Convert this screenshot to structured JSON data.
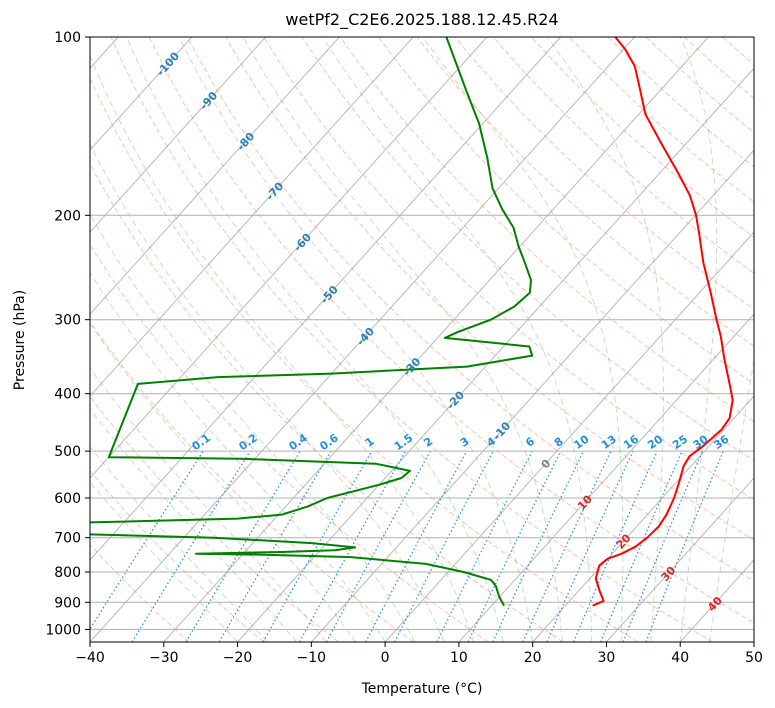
{
  "chart_data": {
    "type": "line",
    "subtype": "skew-t log-p",
    "title": "wetPf2_C2E6.2025.188.12.45.R24",
    "xlabel": "Temperature (°C)",
    "ylabel": "Pressure (hPa)",
    "xlim": [
      -40,
      50
    ],
    "ylim": [
      1050,
      100
    ],
    "y_scale": "log",
    "grid": true,
    "x_ticks": [
      -40,
      -30,
      -20,
      -10,
      0,
      10,
      20,
      30,
      40,
      50
    ],
    "y_ticks": [
      100,
      200,
      300,
      400,
      500,
      600,
      700,
      800,
      900,
      1000
    ],
    "series": [
      {
        "color": "#ff0000",
        "role": "temperature",
        "points": [
          {
            "p": 912,
            "t": 23.7
          },
          {
            "p": 895,
            "t": 24.6
          },
          {
            "p": 860,
            "t": 22.8
          },
          {
            "p": 820,
            "t": 20.8
          },
          {
            "p": 780,
            "t": 19.7
          },
          {
            "p": 760,
            "t": 20.0
          },
          {
            "p": 745,
            "t": 21.3
          },
          {
            "p": 725,
            "t": 22.3
          },
          {
            "p": 700,
            "t": 22.8
          },
          {
            "p": 670,
            "t": 23.0
          },
          {
            "p": 640,
            "t": 22.6
          },
          {
            "p": 600,
            "t": 21.6
          },
          {
            "p": 560,
            "t": 20.2
          },
          {
            "p": 530,
            "t": 19.0
          },
          {
            "p": 510,
            "t": 18.6
          },
          {
            "p": 490,
            "t": 19.2
          },
          {
            "p": 460,
            "t": 19.7
          },
          {
            "p": 440,
            "t": 19.4
          },
          {
            "p": 410,
            "t": 17.6
          },
          {
            "p": 380,
            "t": 14.7
          },
          {
            "p": 350,
            "t": 11.5
          },
          {
            "p": 320,
            "t": 8.2
          },
          {
            "p": 300,
            "t": 5.6
          },
          {
            "p": 270,
            "t": 1.5
          },
          {
            "p": 240,
            "t": -3.2
          },
          {
            "p": 215,
            "t": -7.2
          },
          {
            "p": 200,
            "t": -9.9
          },
          {
            "p": 185,
            "t": -13.2
          },
          {
            "p": 170,
            "t": -17.4
          },
          {
            "p": 150,
            "t": -23.8
          },
          {
            "p": 135,
            "t": -29.1
          },
          {
            "p": 120,
            "t": -33.7
          },
          {
            "p": 112,
            "t": -36.4
          },
          {
            "p": 105,
            "t": -39.7
          },
          {
            "p": 100,
            "t": -42.6
          }
        ]
      },
      {
        "color": "#008000",
        "role": "dewpoint",
        "points": [
          {
            "p": 912,
            "t": 11.7
          },
          {
            "p": 880,
            "t": 9.9
          },
          {
            "p": 845,
            "t": 8.2
          },
          {
            "p": 825,
            "t": 6.8
          },
          {
            "p": 800,
            "t": 2.1
          },
          {
            "p": 775,
            "t": -4.0
          },
          {
            "p": 755,
            "t": -15.0
          },
          {
            "p": 748,
            "t": -27.0
          },
          {
            "p": 745,
            "t": -36.4
          },
          {
            "p": 740,
            "t": -25.0
          },
          {
            "p": 735,
            "t": -18.0
          },
          {
            "p": 727,
            "t": -15.6
          },
          {
            "p": 715,
            "t": -22.0
          },
          {
            "p": 700,
            "t": -36.0
          },
          {
            "p": 690,
            "t": -55.0
          },
          {
            "p": 660,
            "t": -55.0
          },
          {
            "p": 650,
            "t": -35.0
          },
          {
            "p": 640,
            "t": -29.5
          },
          {
            "p": 620,
            "t": -27.0
          },
          {
            "p": 600,
            "t": -25.4
          },
          {
            "p": 570,
            "t": -20.0
          },
          {
            "p": 555,
            "t": -17.8
          },
          {
            "p": 540,
            "t": -17.5
          },
          {
            "p": 525,
            "t": -23.0
          },
          {
            "p": 515,
            "t": -42.0
          },
          {
            "p": 512,
            "t": -60.0
          },
          {
            "p": 385,
            "t": -65.0
          },
          {
            "p": 375,
            "t": -55.0
          },
          {
            "p": 370,
            "t": -40.0
          },
          {
            "p": 360,
            "t": -22.5
          },
          {
            "p": 345,
            "t": -15.0
          },
          {
            "p": 333,
            "t": -16.5
          },
          {
            "p": 322,
            "t": -29.0
          },
          {
            "p": 315,
            "t": -28.0
          },
          {
            "p": 300,
            "t": -25.0
          },
          {
            "p": 285,
            "t": -23.4
          },
          {
            "p": 270,
            "t": -23.0
          },
          {
            "p": 257,
            "t": -24.4
          },
          {
            "p": 240,
            "t": -27.4
          },
          {
            "p": 225,
            "t": -30.3
          },
          {
            "p": 210,
            "t": -33.1
          },
          {
            "p": 195,
            "t": -37.0
          },
          {
            "p": 180,
            "t": -40.8
          },
          {
            "p": 160,
            "t": -45.2
          },
          {
            "p": 140,
            "t": -50.5
          },
          {
            "p": 125,
            "t": -55.6
          },
          {
            "p": 115,
            "t": -59.3
          },
          {
            "p": 107,
            "t": -62.5
          },
          {
            "p": 100,
            "t": -65.5
          }
        ]
      }
    ],
    "isotherm_labels": [
      {
        "text": "-100",
        "value": -100,
        "p": 111
      },
      {
        "text": "-90",
        "value": -90,
        "p": 128
      },
      {
        "text": "-80",
        "value": -80,
        "p": 150
      },
      {
        "text": "-70",
        "value": -70,
        "p": 182
      },
      {
        "text": "-60",
        "value": -60,
        "p": 222
      },
      {
        "text": "-50",
        "value": -50,
        "p": 272
      },
      {
        "text": "-40",
        "value": -40,
        "p": 320
      },
      {
        "text": "-30",
        "value": -30,
        "p": 360
      },
      {
        "text": "-20",
        "value": -20,
        "p": 410
      },
      {
        "text": "-10",
        "value": -10,
        "p": 462
      },
      {
        "text": "0",
        "value": 0,
        "p": 525
      },
      {
        "text": "10",
        "value": 10,
        "p": 610
      },
      {
        "text": "20",
        "value": 20,
        "p": 710
      },
      {
        "text": "30",
        "value": 30,
        "p": 805
      },
      {
        "text": "40",
        "value": 40,
        "p": 905
      }
    ],
    "mixing_ratio_labels": [
      "0.1",
      "0.2",
      "0.4",
      "0.6",
      "1",
      "1.5",
      "2",
      "3",
      "4",
      "6",
      "8",
      "10",
      "13",
      "16",
      "20",
      "25",
      "30",
      "36"
    ],
    "colors": {
      "isotherm_label_cold": "#2c7fb8",
      "isotherm_label_zero": "#808080",
      "isotherm_label_warm": "#d62728",
      "mixing_ratio": "#1f8fe0",
      "dry_adiabat": "#ff8c69",
      "moist_adiabat": "#66b366",
      "isotherm_line": "#808080"
    }
  }
}
